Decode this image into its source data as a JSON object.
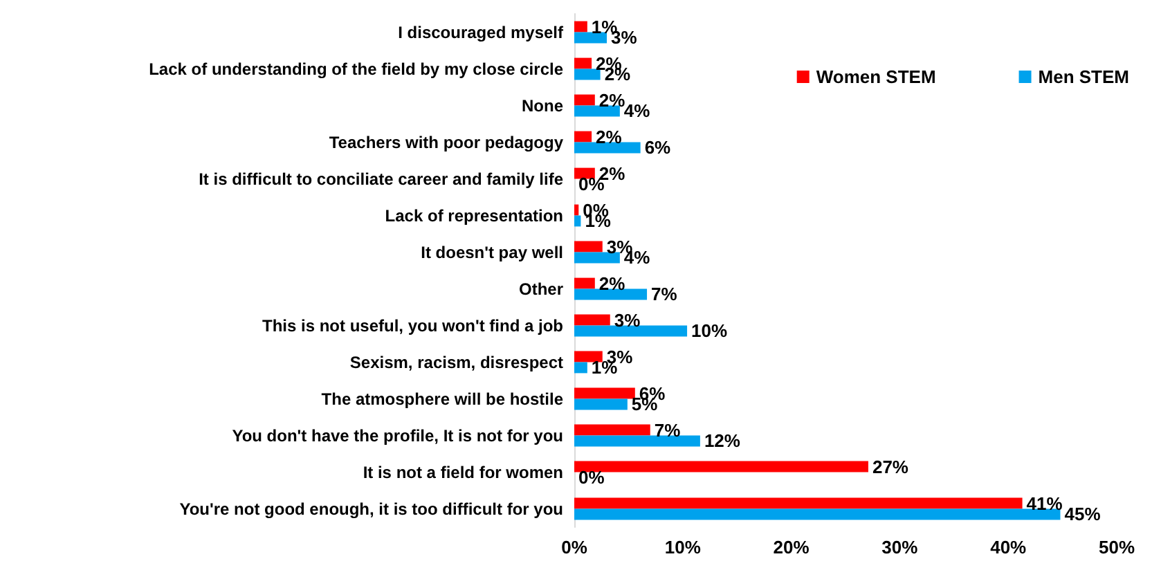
{
  "chart_data": {
    "type": "bar",
    "orientation": "horizontal",
    "categories": [
      "I discouraged myself",
      "Lack of understanding of the field by my close circle",
      "None",
      "Teachers with poor pedagogy",
      "It is difficult to conciliate career and family life",
      "Lack of representation",
      "It doesn't pay well",
      "Other",
      "This is not useful, you won't find a job",
      "Sexism, racism, disrespect",
      "The atmosphere will be hostile",
      "You don't have the profile, It is not for you",
      "It is not a field for women",
      "You're not good enough, it is too difficult for you"
    ],
    "series": [
      {
        "name": "Women STEM",
        "color": "#ff0000",
        "values": [
          1.2,
          1.6,
          1.9,
          1.6,
          1.9,
          0.4,
          2.6,
          1.9,
          3.3,
          2.6,
          5.6,
          7.0,
          27.1,
          41.3
        ],
        "value_labels": [
          "1%",
          "2%",
          "2%",
          "2%",
          "2%",
          "0%",
          "3%",
          "2%",
          "3%",
          "3%",
          "6%",
          "7%",
          "27%",
          "41%"
        ]
      },
      {
        "name": "Men STEM",
        "color": "#00a2ed",
        "values": [
          3.0,
          2.4,
          4.2,
          6.1,
          0,
          0.6,
          4.2,
          6.7,
          10.4,
          1.2,
          4.9,
          11.6,
          0,
          44.8
        ],
        "value_labels": [
          "3%",
          "2%",
          "4%",
          "6%",
          "0%",
          "1%",
          "4%",
          "7%",
          "10%",
          "1%",
          "5%",
          "12%",
          "0%",
          "45%"
        ]
      }
    ],
    "xlim": [
      0,
      50
    ],
    "xticks": [
      {
        "value": 0,
        "label": "0%"
      },
      {
        "value": 10,
        "label": "10%"
      },
      {
        "value": 20,
        "label": "20%"
      },
      {
        "value": 30,
        "label": "30%"
      },
      {
        "value": 40,
        "label": "40%"
      },
      {
        "value": 50,
        "label": "50%"
      }
    ],
    "grid": false,
    "legend": "top right"
  }
}
